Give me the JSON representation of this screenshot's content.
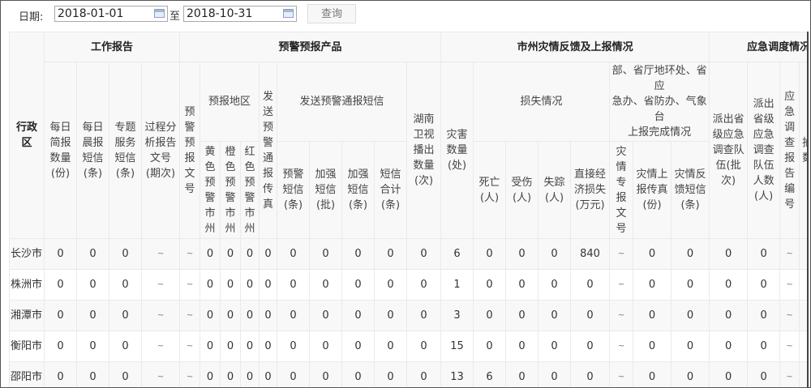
{
  "toolbar": {
    "date_label": "日期:",
    "start_date": "2018-01-01",
    "separator": "至",
    "end_date": "2018-10-31",
    "query_label": "查询"
  },
  "table": {
    "header": {
      "region": "行政区",
      "group_work_report": "工作报告",
      "group_warning_products": "预警预报产品",
      "group_disaster_feedback": "市州灾情反馈及上报情况",
      "group_emergency_dispatch": "应急调度情况",
      "daily_brief": "每日简报数量(份)",
      "morning_sms": "每日晨报短信(条)",
      "topic_sms": "专题服务短信(条)",
      "process_analysis": "过程分析报告文号(期次)",
      "warning_doc_no": "预警预报文号",
      "forecast_region": "预报地区",
      "yellow": "黄色预警市州",
      "orange": "橙色预警市州",
      "red": "红色预警市州",
      "fax": "发送预警通报传真",
      "sms_group": "发送预警通报短信",
      "warning_sms": "预警短信(条)",
      "enhanced_sms_batch": "加强短信(批)",
      "enhanced_sms_count": "加强短信(条)",
      "sms_total": "短信合计(条)",
      "hunan_tv": "湖南卫视播出数量(次)",
      "disaster_count": "灾害数量(处)",
      "loss_group": "损失情况",
      "deaths": "死亡(人)",
      "injured": "受伤(人)",
      "missing": "失踪(人)",
      "economic_loss": "直接经济损失(万元)",
      "report_group": "部、省厅地环处、省应\n急办、省防办、气象台\n上报完成情况",
      "special_report_no": "灾情专报文号",
      "report_fax": "灾情上报传真(份)",
      "feedback_sms": "灾情反馈短信(条)",
      "team_batches": "派出省级应急调查队伍(批次)",
      "team_people": "派出省级应急调查队伍人数(人)",
      "investigation_no": "应急调查报告编号",
      "partial_col": "抽县数("
    },
    "rows": [
      {
        "region": "长沙市",
        "values": [
          "0",
          "0",
          "0",
          "~",
          "~",
          "0",
          "0",
          "0",
          "0",
          "0",
          "0",
          "0",
          "0",
          "0",
          "6",
          "0",
          "0",
          "0",
          "840",
          "~",
          "0",
          "0",
          "0",
          "0",
          "~",
          ""
        ]
      },
      {
        "region": "株洲市",
        "values": [
          "0",
          "0",
          "0",
          "~",
          "~",
          "0",
          "0",
          "0",
          "0",
          "0",
          "0",
          "0",
          "0",
          "0",
          "1",
          "0",
          "0",
          "0",
          "0",
          "~",
          "0",
          "0",
          "0",
          "0",
          "~",
          ""
        ]
      },
      {
        "region": "湘潭市",
        "values": [
          "0",
          "0",
          "0",
          "~",
          "~",
          "0",
          "0",
          "0",
          "0",
          "0",
          "0",
          "0",
          "0",
          "0",
          "3",
          "0",
          "0",
          "0",
          "0",
          "~",
          "0",
          "0",
          "0",
          "0",
          "~",
          ""
        ]
      },
      {
        "region": "衡阳市",
        "values": [
          "0",
          "0",
          "0",
          "~",
          "~",
          "0",
          "0",
          "0",
          "0",
          "0",
          "0",
          "0",
          "0",
          "0",
          "15",
          "0",
          "0",
          "0",
          "0",
          "~",
          "0",
          "0",
          "0",
          "0",
          "~",
          ""
        ]
      },
      {
        "region": "邵阳市",
        "values": [
          "0",
          "0",
          "0",
          "~",
          "~",
          "0",
          "0",
          "0",
          "0",
          "0",
          "0",
          "0",
          "0",
          "0",
          "13",
          "6",
          "0",
          "0",
          "0",
          "~",
          "0",
          "0",
          "0",
          "0",
          "~",
          ""
        ]
      }
    ]
  }
}
